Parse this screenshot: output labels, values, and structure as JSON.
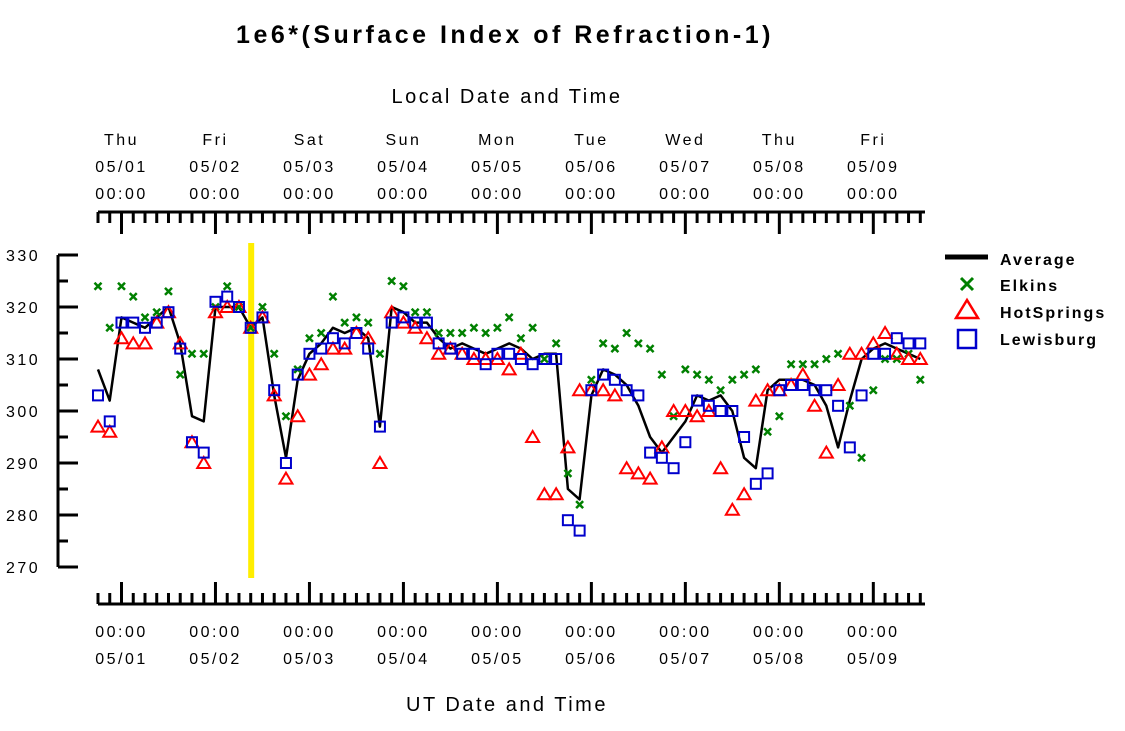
{
  "chart_data": {
    "type": "line",
    "title": "1e6*(Surface Index of Refraction-1)",
    "top_axis_label": "Local Date and Time",
    "bottom_axis_label": "UT Date and Time",
    "ylim": [
      270,
      330
    ],
    "yticks": [
      "330",
      "320",
      "310",
      "300",
      "290",
      "280",
      "270"
    ],
    "xlim": [
      -0.25,
      8.55
    ],
    "local_ticks": [
      {
        "day": "Thu",
        "date": "05/01",
        "time": "00:00"
      },
      {
        "day": "Fri",
        "date": "05/02",
        "time": "00:00"
      },
      {
        "day": "Sat",
        "date": "05/03",
        "time": "00:00"
      },
      {
        "day": "Sun",
        "date": "05/04",
        "time": "00:00"
      },
      {
        "day": "Mon",
        "date": "05/05",
        "time": "00:00"
      },
      {
        "day": "Tue",
        "date": "05/06",
        "time": "00:00"
      },
      {
        "day": "Wed",
        "date": "05/07",
        "time": "00:00"
      },
      {
        "day": "Thu",
        "date": "05/08",
        "time": "00:00"
      },
      {
        "day": "Fri",
        "date": "05/09",
        "time": "00:00"
      }
    ],
    "ut_ticks": [
      {
        "time": "00:00",
        "date": "05/01"
      },
      {
        "time": "00:00",
        "date": "05/02"
      },
      {
        "time": "00:00",
        "date": "05/03"
      },
      {
        "time": "00:00",
        "date": "05/04"
      },
      {
        "time": "00:00",
        "date": "05/05"
      },
      {
        "time": "00:00",
        "date": "05/06"
      },
      {
        "time": "00:00",
        "date": "05/07"
      },
      {
        "time": "00:00",
        "date": "05/08"
      },
      {
        "time": "00:00",
        "date": "05/09"
      }
    ],
    "current_time_marker": {
      "x": 1.38,
      "color": "#ffee00"
    },
    "legend_position": "right",
    "series": [
      {
        "name": "Average",
        "kind": "line",
        "color": "#000000",
        "x": [
          -0.25,
          -0.125,
          0,
          0.125,
          0.25,
          0.375,
          0.5,
          0.625,
          0.75,
          0.875,
          1,
          1.125,
          1.25,
          1.375,
          1.5,
          1.625,
          1.75,
          1.875,
          2,
          2.125,
          2.25,
          2.375,
          2.5,
          2.625,
          2.75,
          2.875,
          3,
          3.125,
          3.25,
          3.375,
          3.5,
          3.625,
          3.75,
          3.875,
          4,
          4.125,
          4.25,
          4.375,
          4.5,
          4.625,
          4.75,
          4.875,
          5,
          5.125,
          5.25,
          5.375,
          5.5,
          5.625,
          5.75,
          5.875,
          6,
          6.125,
          6.25,
          6.375,
          6.5,
          6.625,
          6.75,
          6.875,
          7,
          7.125,
          7.25,
          7.375,
          7.5,
          7.625,
          7.75,
          7.875,
          8,
          8.125,
          8.25,
          8.375,
          8.5
        ],
        "y": [
          308,
          302,
          318,
          317,
          316,
          318,
          320,
          313,
          299,
          298,
          320,
          320,
          320,
          316,
          318,
          303,
          291,
          306,
          311,
          313,
          316,
          315,
          316,
          314,
          297,
          320,
          319,
          317,
          317,
          314,
          312,
          313,
          312,
          311,
          312,
          313,
          312,
          310,
          311,
          311,
          285,
          283,
          303,
          308,
          307,
          305,
          301,
          295,
          292,
          295,
          298,
          303,
          302,
          303,
          300,
          291,
          289,
          304,
          306,
          306,
          306,
          305,
          301,
          293,
          302,
          310,
          312,
          313,
          312,
          311,
          310
        ]
      },
      {
        "name": "Elkins",
        "kind": "x",
        "color": "#008000",
        "x": [
          -0.25,
          -0.125,
          0,
          0.125,
          0.25,
          0.375,
          0.5,
          0.625,
          0.75,
          0.875,
          1,
          1.125,
          1.25,
          1.375,
          1.5,
          1.625,
          1.75,
          1.875,
          2,
          2.125,
          2.25,
          2.375,
          2.5,
          2.625,
          2.75,
          2.875,
          3,
          3.125,
          3.25,
          3.375,
          3.5,
          3.625,
          3.75,
          3.875,
          4,
          4.125,
          4.25,
          4.375,
          4.5,
          4.625,
          4.75,
          4.875,
          5,
          5.125,
          5.25,
          5.375,
          5.5,
          5.625,
          5.75,
          5.875,
          6,
          6.125,
          6.25,
          6.375,
          6.5,
          6.625,
          6.75,
          6.875,
          7,
          7.125,
          7.25,
          7.375,
          7.5,
          7.625,
          7.75,
          7.875,
          8,
          8.125,
          8.25,
          8.375,
          8.5
        ],
        "y": [
          324,
          316,
          324,
          322,
          318,
          319,
          323,
          307,
          311,
          311,
          320,
          324,
          320,
          316,
          320,
          311,
          299,
          308,
          314,
          315,
          322,
          317,
          318,
          317,
          311,
          325,
          324,
          319,
          319,
          315,
          315,
          315,
          316,
          315,
          316,
          318,
          314,
          316,
          310,
          313,
          288,
          282,
          306,
          313,
          312,
          315,
          313,
          312,
          307,
          299,
          308,
          307,
          306,
          304,
          306,
          307,
          308,
          296,
          299,
          309,
          309,
          309,
          310,
          311,
          301,
          291,
          304,
          310,
          310,
          311,
          306
        ]
      },
      {
        "name": "HotSprings",
        "kind": "triangle",
        "color": "#ff0000",
        "x": [
          -0.25,
          -0.125,
          0,
          0.125,
          0.25,
          0.375,
          0.5,
          0.625,
          0.75,
          0.875,
          1,
          1.125,
          1.25,
          1.375,
          1.5,
          1.625,
          1.75,
          1.875,
          2,
          2.125,
          2.25,
          2.375,
          2.5,
          2.625,
          2.75,
          2.875,
          3,
          3.125,
          3.25,
          3.375,
          3.5,
          3.625,
          3.75,
          3.875,
          4,
          4.125,
          4.25,
          4.375,
          4.5,
          4.625,
          4.75,
          4.875,
          5,
          5.125,
          5.25,
          5.375,
          5.5,
          5.625,
          5.75,
          5.875,
          6,
          6.125,
          6.25,
          6.375,
          6.5,
          6.625,
          6.75,
          6.875,
          7,
          7.125,
          7.25,
          7.375,
          7.5,
          7.625,
          7.75,
          7.875,
          8,
          8.125,
          8.25,
          8.375,
          8.5
        ],
        "y": [
          297,
          296,
          314,
          313,
          313,
          317,
          319,
          313,
          294,
          290,
          319,
          320,
          320,
          316,
          318,
          303,
          287,
          299,
          307,
          309,
          312,
          312,
          315,
          314,
          290,
          319,
          317,
          316,
          314,
          311,
          312,
          311,
          310,
          310,
          310,
          308,
          311,
          295,
          284,
          284,
          293,
          304,
          304,
          304,
          303,
          289,
          288,
          287,
          293,
          300,
          300,
          299,
          300,
          289,
          281,
          284,
          302,
          304,
          304,
          305,
          307,
          301,
          292,
          305,
          311,
          311,
          313,
          315,
          311,
          310,
          310
        ]
      },
      {
        "name": "Lewisburg",
        "kind": "square",
        "color": "#0000cc",
        "x": [
          -0.25,
          -0.125,
          0,
          0.125,
          0.25,
          0.375,
          0.5,
          0.625,
          0.75,
          0.875,
          1,
          1.125,
          1.25,
          1.375,
          1.5,
          1.625,
          1.75,
          1.875,
          2,
          2.125,
          2.25,
          2.375,
          2.5,
          2.625,
          2.75,
          2.875,
          3,
          3.125,
          3.25,
          3.375,
          3.5,
          3.625,
          3.75,
          3.875,
          4,
          4.125,
          4.25,
          4.375,
          4.5,
          4.625,
          4.75,
          4.875,
          5,
          5.125,
          5.25,
          5.375,
          5.5,
          5.625,
          5.75,
          5.875,
          6,
          6.125,
          6.25,
          6.375,
          6.5,
          6.625,
          6.75,
          6.875,
          7,
          7.125,
          7.25,
          7.375,
          7.5,
          7.625,
          7.75,
          7.875,
          8,
          8.125,
          8.25,
          8.375,
          8.5
        ],
        "y": [
          303,
          298,
          317,
          317,
          316,
          317,
          319,
          312,
          294,
          292,
          321,
          322,
          320,
          316,
          318,
          304,
          290,
          307,
          311,
          312,
          314,
          313,
          315,
          312,
          297,
          317,
          318,
          317,
          317,
          313,
          312,
          311,
          311,
          309,
          311,
          311,
          310,
          309,
          310,
          310,
          279,
          277,
          304,
          307,
          306,
          304,
          303,
          292,
          291,
          289,
          294,
          302,
          301,
          300,
          300,
          295,
          286,
          288,
          304,
          305,
          305,
          304,
          304,
          301,
          293,
          303,
          311,
          311,
          314,
          313,
          313
        ]
      }
    ]
  }
}
